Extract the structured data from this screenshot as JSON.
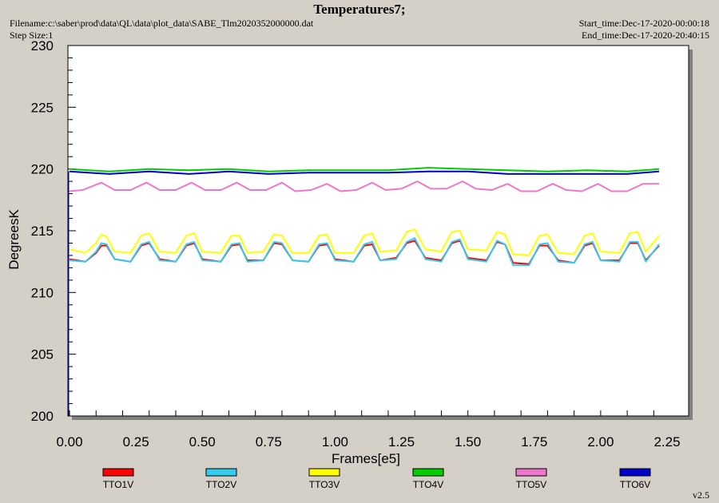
{
  "header": {
    "title": "Temperatures7;",
    "filename": "Filename:c:\\saber\\prod\\data\\QL\\data\\plot_data\\SABE_Tlm2020352000000.dat",
    "step_size": "Step Size:1",
    "start_time": "Start_time:Dec-17-2020-00:00:18",
    "end_time": "End_time:Dec-17-2020-20:40:15"
  },
  "version": "v2.5",
  "chart_data": {
    "type": "line",
    "xlabel": "Frames[e5]",
    "ylabel": "DegreesK",
    "xlim": [
      0,
      2.35
    ],
    "ylim": [
      200,
      230
    ],
    "xticks": [
      "0.00",
      "0.25",
      "0.50",
      "0.75",
      "1.00",
      "1.25",
      "1.50",
      "1.75",
      "2.00",
      "2.25"
    ],
    "yticks": [
      "200",
      "205",
      "210",
      "215",
      "220",
      "225",
      "230"
    ],
    "legend_placement": "bottom",
    "series": [
      {
        "name": "TTO1V",
        "color": "#ff0000",
        "x": [
          0,
          0.06,
          0.1,
          0.12,
          0.14,
          0.17,
          0.23,
          0.27,
          0.3,
          0.34,
          0.4,
          0.44,
          0.47,
          0.5,
          0.57,
          0.61,
          0.64,
          0.67,
          0.73,
          0.77,
          0.8,
          0.84,
          0.9,
          0.94,
          0.97,
          1.0,
          1.07,
          1.11,
          1.14,
          1.17,
          1.23,
          1.27,
          1.3,
          1.34,
          1.4,
          1.44,
          1.47,
          1.5,
          1.57,
          1.61,
          1.64,
          1.67,
          1.73,
          1.77,
          1.8,
          1.84,
          1.9,
          1.94,
          1.97,
          2.0,
          2.07,
          2.11,
          2.14,
          2.17,
          2.22
        ],
        "y": [
          212.7,
          212.5,
          213.2,
          213.8,
          213.8,
          212.7,
          212.5,
          213.8,
          214.0,
          212.7,
          212.5,
          213.8,
          214.0,
          212.7,
          212.5,
          213.8,
          213.9,
          212.6,
          212.6,
          214.0,
          213.9,
          212.6,
          212.5,
          213.8,
          213.9,
          212.7,
          212.5,
          213.8,
          213.9,
          212.6,
          212.8,
          214.0,
          214.2,
          212.8,
          212.6,
          214.0,
          214.2,
          212.8,
          212.6,
          214.1,
          213.9,
          212.4,
          212.3,
          213.8,
          213.8,
          212.6,
          212.4,
          213.8,
          214.0,
          212.6,
          212.6,
          214.0,
          214.0,
          212.6,
          213.8
        ]
      },
      {
        "name": "TTO2V",
        "color": "#33ccee",
        "x": [
          0,
          0.06,
          0.1,
          0.12,
          0.14,
          0.17,
          0.23,
          0.27,
          0.3,
          0.34,
          0.4,
          0.44,
          0.47,
          0.5,
          0.57,
          0.61,
          0.64,
          0.67,
          0.73,
          0.77,
          0.8,
          0.84,
          0.9,
          0.94,
          0.97,
          1.0,
          1.07,
          1.11,
          1.14,
          1.17,
          1.23,
          1.27,
          1.3,
          1.34,
          1.4,
          1.44,
          1.47,
          1.5,
          1.57,
          1.61,
          1.64,
          1.67,
          1.73,
          1.77,
          1.8,
          1.84,
          1.9,
          1.94,
          1.97,
          2.0,
          2.07,
          2.11,
          2.14,
          2.17,
          2.22
        ],
        "y": [
          212.6,
          212.5,
          213.3,
          214.0,
          213.9,
          212.7,
          212.5,
          213.9,
          214.1,
          212.6,
          212.5,
          213.9,
          214.1,
          212.6,
          212.5,
          213.9,
          214.0,
          212.5,
          212.6,
          214.1,
          214.0,
          212.6,
          212.5,
          213.9,
          214.0,
          212.6,
          212.5,
          213.9,
          214.1,
          212.6,
          212.7,
          214.1,
          214.4,
          212.7,
          212.5,
          214.1,
          214.3,
          212.7,
          212.5,
          214.2,
          213.9,
          212.2,
          212.2,
          213.9,
          214.0,
          212.5,
          212.4,
          213.9,
          214.1,
          212.6,
          212.5,
          214.1,
          214.1,
          212.5,
          213.9
        ]
      },
      {
        "name": "TTO3V",
        "color": "#ffff00",
        "x": [
          0,
          0.06,
          0.1,
          0.12,
          0.14,
          0.17,
          0.23,
          0.27,
          0.3,
          0.34,
          0.4,
          0.44,
          0.47,
          0.5,
          0.57,
          0.61,
          0.64,
          0.67,
          0.73,
          0.77,
          0.8,
          0.84,
          0.9,
          0.94,
          0.97,
          1.0,
          1.07,
          1.11,
          1.14,
          1.17,
          1.23,
          1.27,
          1.3,
          1.34,
          1.4,
          1.44,
          1.47,
          1.5,
          1.57,
          1.61,
          1.64,
          1.67,
          1.73,
          1.77,
          1.8,
          1.84,
          1.9,
          1.94,
          1.97,
          2.0,
          2.07,
          2.11,
          2.14,
          2.17,
          2.22
        ],
        "y": [
          213.5,
          213.2,
          214.0,
          214.7,
          214.5,
          213.3,
          213.2,
          214.6,
          214.8,
          213.3,
          213.2,
          214.6,
          214.8,
          213.3,
          213.2,
          214.6,
          214.6,
          213.2,
          213.3,
          214.7,
          214.6,
          213.2,
          213.2,
          214.6,
          214.7,
          213.2,
          213.2,
          214.6,
          214.8,
          213.3,
          213.4,
          214.9,
          215.1,
          213.5,
          213.3,
          214.9,
          215.0,
          213.5,
          213.4,
          214.9,
          214.7,
          213.1,
          213.0,
          214.6,
          214.7,
          213.2,
          213.1,
          214.6,
          214.8,
          213.3,
          213.2,
          214.8,
          214.9,
          213.3,
          214.6
        ]
      },
      {
        "name": "TTO4V",
        "color": "#00cc00",
        "x": [
          0,
          0.15,
          0.3,
          0.45,
          0.6,
          0.75,
          0.9,
          1.05,
          1.2,
          1.35,
          1.5,
          1.65,
          1.8,
          1.95,
          2.1,
          2.22
        ],
        "y": [
          220.0,
          219.8,
          220.0,
          219.9,
          220.0,
          219.8,
          219.9,
          219.9,
          219.9,
          220.1,
          220.0,
          219.9,
          219.8,
          219.9,
          219.8,
          220.0
        ]
      },
      {
        "name": "TTO5V",
        "color": "#ee77cc",
        "x": [
          0,
          0.05,
          0.12,
          0.17,
          0.23,
          0.29,
          0.34,
          0.4,
          0.46,
          0.51,
          0.57,
          0.63,
          0.68,
          0.74,
          0.8,
          0.85,
          0.91,
          0.97,
          1.02,
          1.08,
          1.14,
          1.19,
          1.25,
          1.31,
          1.36,
          1.42,
          1.48,
          1.53,
          1.59,
          1.65,
          1.7,
          1.76,
          1.82,
          1.87,
          1.93,
          1.99,
          2.04,
          2.1,
          2.16,
          2.22
        ],
        "y": [
          218.2,
          218.3,
          218.9,
          218.3,
          218.3,
          218.9,
          218.3,
          218.3,
          218.9,
          218.3,
          218.3,
          218.9,
          218.3,
          218.3,
          218.9,
          218.2,
          218.3,
          218.8,
          218.2,
          218.3,
          218.9,
          218.3,
          218.4,
          219.0,
          218.4,
          218.4,
          219.0,
          218.4,
          218.3,
          218.8,
          218.2,
          218.2,
          218.8,
          218.3,
          218.2,
          218.8,
          218.2,
          218.2,
          218.8,
          218.8
        ]
      },
      {
        "name": "TTO6V",
        "color": "#0000cc",
        "x": [
          0,
          0.15,
          0.3,
          0.45,
          0.6,
          0.75,
          0.9,
          1.05,
          1.2,
          1.35,
          1.5,
          1.65,
          1.8,
          1.95,
          2.1,
          2.22
        ],
        "y": [
          219.8,
          219.6,
          219.8,
          219.6,
          219.8,
          219.6,
          219.7,
          219.7,
          219.7,
          219.8,
          219.8,
          219.6,
          219.6,
          219.6,
          219.6,
          219.8
        ]
      }
    ]
  }
}
